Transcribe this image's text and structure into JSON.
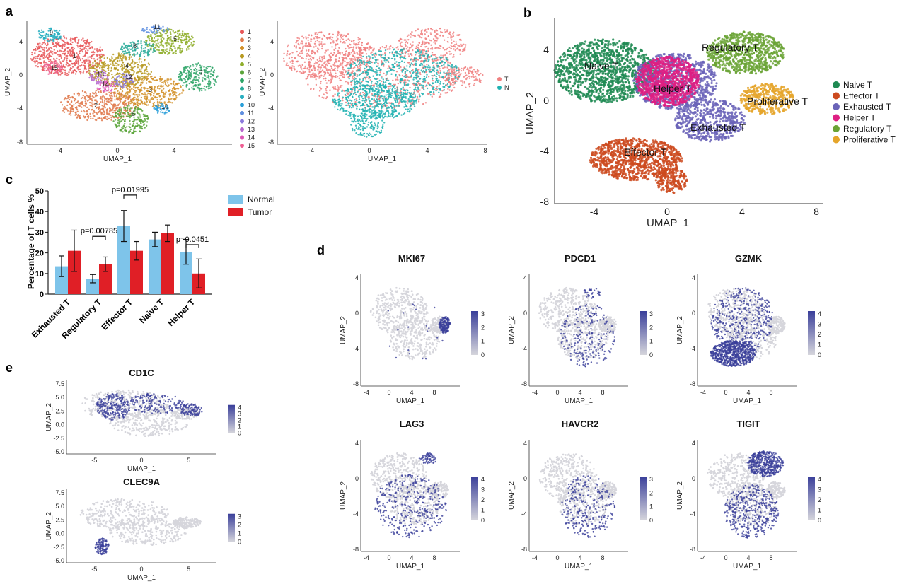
{
  "panel_labels": {
    "a": "a",
    "b": "b",
    "c": "c",
    "d": "d",
    "e": "e"
  },
  "colors": {
    "clusters": [
      "#e8585a",
      "#e07a4e",
      "#d29028",
      "#b79a22",
      "#8fae2b",
      "#5aa43a",
      "#2ea567",
      "#2bab9a",
      "#27aec0",
      "#2a9fd9",
      "#5f8fe0",
      "#8b79dc",
      "#b768cf",
      "#dc58b8",
      "#ef5f93"
    ],
    "T": "#f08080",
    "N": "#20b2b2",
    "naive": "#1f8a52",
    "effector": "#cc4a1f",
    "exhausted": "#6a63b8",
    "helper": "#de1f83",
    "regulatory": "#6aa335",
    "proliferative": "#e5a52a",
    "normal": "#7ec4ea",
    "tumor": "#e01f26",
    "expr_high": "#3a3f9a",
    "expr_low": "#d6d6dc"
  },
  "a_left": {
    "xlabel": "UMAP_1",
    "ylabel": "UMAP_2",
    "xticks": [
      "-4",
      "0",
      "4"
    ],
    "yticks": [
      "4",
      "0",
      "-4",
      "-8"
    ],
    "cluster_labels": [
      "1",
      "2",
      "3",
      "4",
      "5",
      "6",
      "7",
      "8",
      "9",
      "10",
      "11",
      "12",
      "13",
      "14",
      "15"
    ],
    "legend": [
      "1",
      "2",
      "3",
      "4",
      "5",
      "6",
      "7",
      "8",
      "9",
      "10",
      "11",
      "12",
      "13",
      "14",
      "15"
    ]
  },
  "a_right": {
    "xlabel": "UMAP_1",
    "ylabel": "UMAP_2",
    "xticks": [
      "-4",
      "0",
      "4",
      "8"
    ],
    "yticks": [
      "4",
      "0",
      "-4",
      "-8"
    ],
    "legend": [
      "T",
      "N"
    ]
  },
  "b": {
    "xlabel": "UMAP_1",
    "ylabel": "UMAP_2",
    "xticks": [
      "-4",
      "0",
      "4",
      "8"
    ],
    "yticks": [
      "4",
      "0",
      "-4",
      "-8"
    ],
    "labels": [
      "Naive T",
      "Regulatory T",
      "Helper T",
      "Proliferative T",
      "Exhausted T",
      "Effector T"
    ],
    "legend": [
      "Naive T",
      "Effector T",
      "Exhausted T",
      "Helper T",
      "Regulatory T",
      "Proliferative T"
    ]
  },
  "chart_data": {
    "type": "bar",
    "ylabel": "Percentage of T cells %",
    "categories": [
      "Exhausted T",
      "Regulatory T",
      "Effector T",
      "Naive T",
      "Helper T"
    ],
    "series": [
      {
        "name": "Normal",
        "values": [
          13.5,
          7.5,
          33,
          26.5,
          20.5
        ],
        "err": [
          5,
          2,
          7.5,
          3.5,
          6
        ]
      },
      {
        "name": "Tumor",
        "values": [
          21,
          14.5,
          21,
          29.5,
          10
        ],
        "err": [
          10,
          3.5,
          4.5,
          4,
          7
        ]
      }
    ],
    "ylim": [
      0,
      50
    ],
    "yticks": [
      "0",
      "10",
      "20",
      "30",
      "40",
      "50"
    ],
    "annotations": [
      "p=0.00785",
      "p=0.01995",
      "p=0.0451"
    ]
  },
  "d_plots": [
    {
      "gene": "MKI67",
      "scale": [
        "3",
        "2",
        "1",
        "0"
      ]
    },
    {
      "gene": "PDCD1",
      "scale": [
        "3",
        "2",
        "1",
        "0"
      ]
    },
    {
      "gene": "GZMK",
      "scale": [
        "4",
        "3",
        "2",
        "1",
        "0"
      ]
    },
    {
      "gene": "LAG3",
      "scale": [
        "4",
        "3",
        "2",
        "1",
        "0"
      ]
    },
    {
      "gene": "HAVCR2",
      "scale": [
        "3",
        "2",
        "1",
        "0"
      ]
    },
    {
      "gene": "TIGIT",
      "scale": [
        "4",
        "3",
        "2",
        "1",
        "0"
      ]
    }
  ],
  "d_axes": {
    "xlabel": "UMAP_1",
    "ylabel": "UMAP_2",
    "xticks": [
      "-4",
      "0",
      "4",
      "8"
    ],
    "yticks": [
      "4",
      "0",
      "-4",
      "-8"
    ]
  },
  "e_plots": [
    {
      "gene": "CD1C",
      "scale": [
        "4",
        "3",
        "2",
        "1",
        "0"
      ]
    },
    {
      "gene": "CLEC9A",
      "scale": [
        "3",
        "2",
        "1",
        "0"
      ]
    }
  ],
  "e_axes": {
    "xlabel": "UMAP_1",
    "ylabel": "UMAP_2",
    "xticks": [
      "-5",
      "0",
      "5"
    ],
    "yticks": [
      "7.5",
      "5.0",
      "2.5",
      "0.0",
      "-2.5",
      "-5.0"
    ]
  }
}
